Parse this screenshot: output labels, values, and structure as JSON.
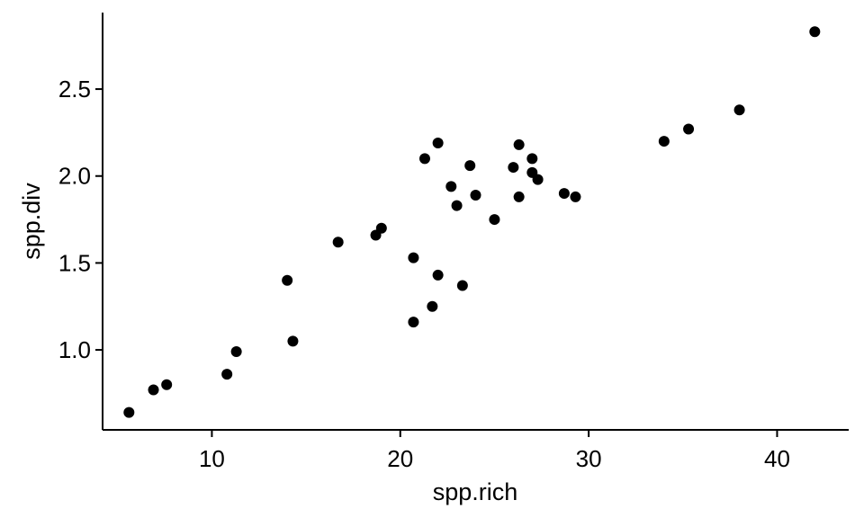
{
  "chart_data": {
    "type": "scatter",
    "title": "",
    "xlabel": "spp.rich",
    "ylabel": "spp.div",
    "xlim": [
      4.2,
      43.8
    ],
    "ylim": [
      0.54,
      2.94
    ],
    "x_ticks": [
      10,
      20,
      30,
      40
    ],
    "x_tick_labels": [
      "10",
      "20",
      "30",
      "40"
    ],
    "y_ticks": [
      1.0,
      1.5,
      2.0,
      2.5
    ],
    "y_tick_labels": [
      "1.0",
      "1.5",
      "2.0",
      "2.5"
    ],
    "grid": false,
    "legend": "none",
    "point_color": "#000000",
    "series": [
      {
        "points": [
          {
            "x": 5.6,
            "y": 0.64
          },
          {
            "x": 6.9,
            "y": 0.77
          },
          {
            "x": 7.6,
            "y": 0.8
          },
          {
            "x": 10.8,
            "y": 0.86
          },
          {
            "x": 11.3,
            "y": 0.99
          },
          {
            "x": 14.0,
            "y": 1.4
          },
          {
            "x": 14.3,
            "y": 1.05
          },
          {
            "x": 16.7,
            "y": 1.62
          },
          {
            "x": 18.7,
            "y": 1.66
          },
          {
            "x": 19.0,
            "y": 1.7
          },
          {
            "x": 20.7,
            "y": 1.53
          },
          {
            "x": 20.7,
            "y": 1.16
          },
          {
            "x": 21.3,
            "y": 2.1
          },
          {
            "x": 21.7,
            "y": 1.25
          },
          {
            "x": 22.0,
            "y": 2.19
          },
          {
            "x": 22.0,
            "y": 1.43
          },
          {
            "x": 22.7,
            "y": 1.94
          },
          {
            "x": 23.0,
            "y": 1.83
          },
          {
            "x": 23.3,
            "y": 1.37
          },
          {
            "x": 23.7,
            "y": 2.06
          },
          {
            "x": 24.0,
            "y": 1.89
          },
          {
            "x": 25.0,
            "y": 1.75
          },
          {
            "x": 26.0,
            "y": 2.05
          },
          {
            "x": 26.3,
            "y": 2.18
          },
          {
            "x": 26.3,
            "y": 1.88
          },
          {
            "x": 27.0,
            "y": 2.1
          },
          {
            "x": 27.0,
            "y": 2.02
          },
          {
            "x": 27.3,
            "y": 1.98
          },
          {
            "x": 28.7,
            "y": 1.9
          },
          {
            "x": 29.3,
            "y": 1.88
          },
          {
            "x": 34.0,
            "y": 2.2
          },
          {
            "x": 35.3,
            "y": 2.27
          },
          {
            "x": 38.0,
            "y": 2.38
          },
          {
            "x": 42.0,
            "y": 2.83
          }
        ]
      }
    ]
  }
}
